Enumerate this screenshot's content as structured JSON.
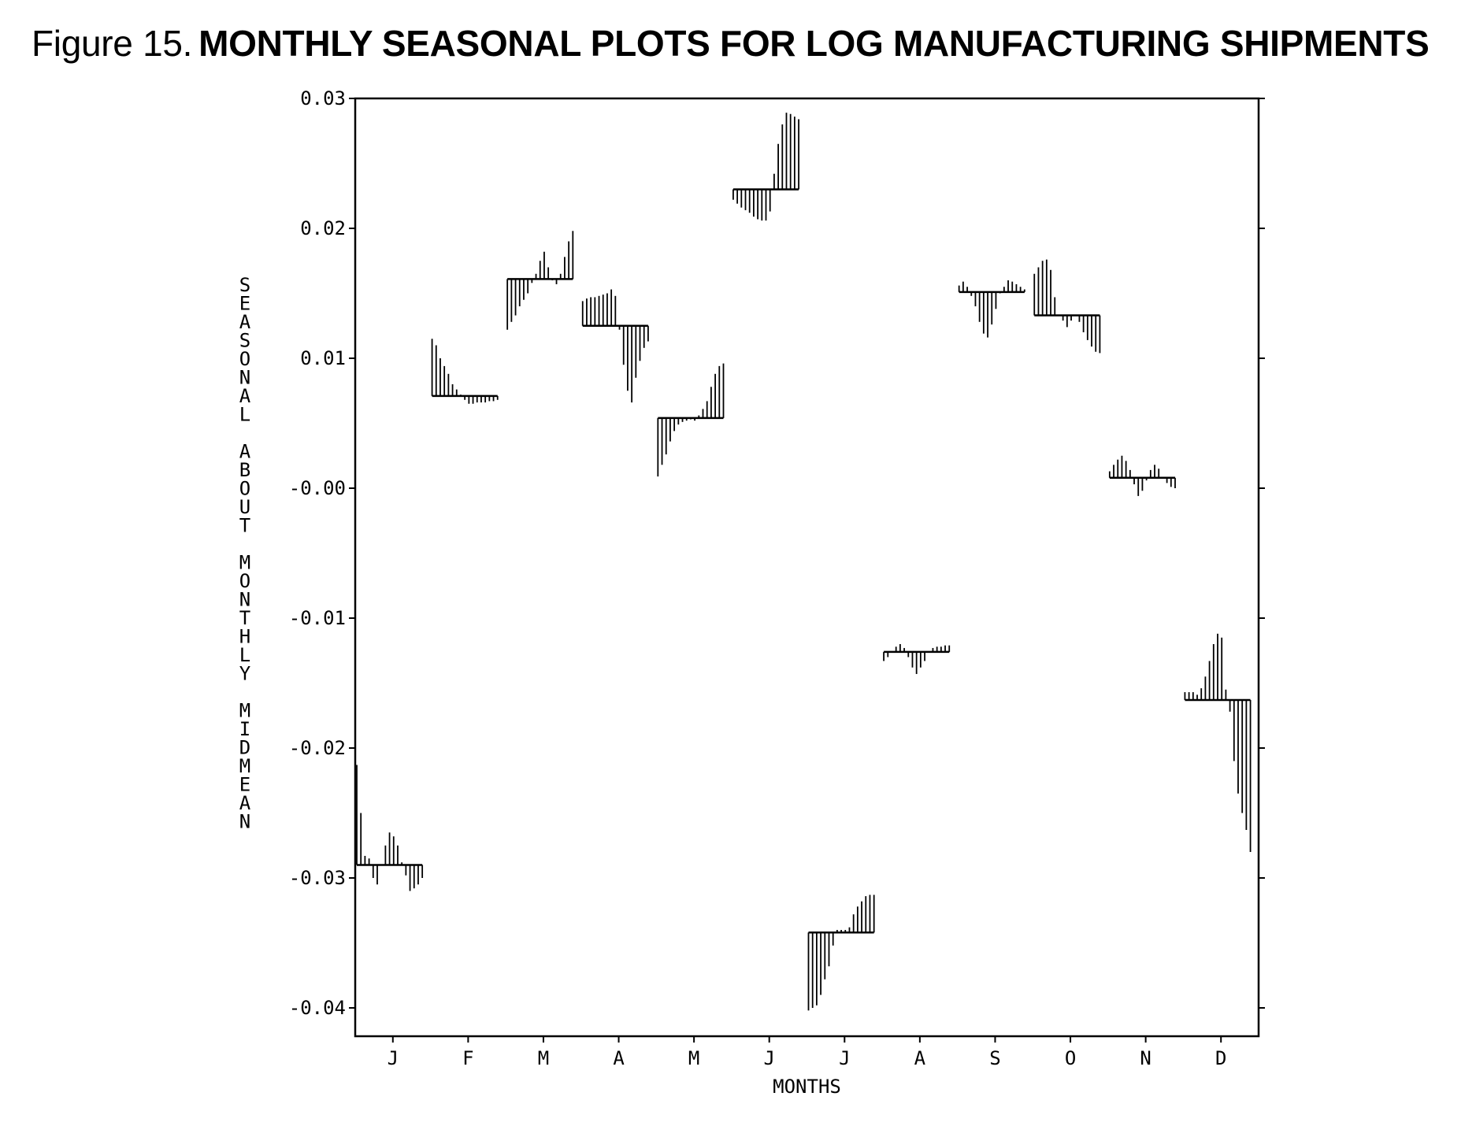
{
  "figure": {
    "label": "Figure 15.",
    "title": "MONTHLY SEASONAL PLOTS FOR LOG MANUFACTURING SHIPMENTS"
  },
  "chart_data": {
    "type": "cycle-subseries",
    "xlabel": "MONTHS",
    "ylabel": "SEASONAL ABOUT MONTHLY MIDMEAN",
    "ylim": [
      -0.0425,
      0.03
    ],
    "yticks": [
      0.03,
      0.02,
      0.01,
      0.0,
      -0.01,
      -0.02,
      -0.03,
      -0.04
    ],
    "ytick_labels": [
      "0.03",
      "0.02",
      "0.01",
      "-0.00",
      "-0.01",
      "-0.02",
      "-0.03",
      "-0.04"
    ],
    "grid": false,
    "line_color": "#000000",
    "months": [
      {
        "label": "J",
        "midmean": -0.029,
        "values": [
          -0.0213,
          -0.025,
          -0.0283,
          -0.0285,
          -0.03,
          -0.0305,
          -0.029,
          -0.0275,
          -0.0265,
          -0.0268,
          -0.0275,
          -0.0288,
          -0.0298,
          -0.031,
          -0.0308,
          -0.0305,
          -0.03
        ]
      },
      {
        "label": "F",
        "midmean": 0.0071,
        "values": [
          0.0115,
          0.011,
          0.01,
          0.0094,
          0.0088,
          0.008,
          0.0076,
          0.0072,
          0.0068,
          0.0065,
          0.0065,
          0.0066,
          0.0066,
          0.0066,
          0.0067,
          0.0067,
          0.0068
        ]
      },
      {
        "label": "M",
        "midmean": 0.0161,
        "values": [
          0.0122,
          0.0128,
          0.0133,
          0.014,
          0.0145,
          0.015,
          0.0158,
          0.0165,
          0.0175,
          0.0182,
          0.017,
          0.016,
          0.0157,
          0.0165,
          0.0178,
          0.019,
          0.0198
        ]
      },
      {
        "label": "A",
        "midmean": 0.0125,
        "values": [
          0.0144,
          0.0146,
          0.0147,
          0.0147,
          0.0148,
          0.0149,
          0.015,
          0.0153,
          0.0148,
          0.0122,
          0.0095,
          0.0075,
          0.0066,
          0.0085,
          0.0098,
          0.0108,
          0.0113
        ]
      },
      {
        "label": "M",
        "midmean": 0.0054,
        "values": [
          0.0009,
          0.0018,
          0.0026,
          0.0036,
          0.0044,
          0.0049,
          0.0051,
          0.0052,
          0.0053,
          0.0052,
          0.0056,
          0.0061,
          0.0067,
          0.0078,
          0.0088,
          0.0094,
          0.0096
        ]
      },
      {
        "label": "J",
        "midmean": 0.023,
        "values": [
          0.0222,
          0.0219,
          0.0216,
          0.0214,
          0.0212,
          0.0209,
          0.0207,
          0.0206,
          0.0206,
          0.0213,
          0.0242,
          0.0265,
          0.028,
          0.0289,
          0.0288,
          0.0286,
          0.0284
        ]
      },
      {
        "label": "J",
        "midmean": -0.0342,
        "values": [
          -0.0402,
          -0.04,
          -0.0398,
          -0.039,
          -0.0378,
          -0.0368,
          -0.0352,
          -0.034,
          -0.034,
          -0.034,
          -0.0338,
          -0.0328,
          -0.0322,
          -0.0318,
          -0.0314,
          -0.0313,
          -0.0313
        ]
      },
      {
        "label": "A",
        "midmean": -0.0126,
        "values": [
          -0.0133,
          -0.013,
          -0.0126,
          -0.0122,
          -0.012,
          -0.0123,
          -0.013,
          -0.0138,
          -0.0143,
          -0.0138,
          -0.0133,
          -0.0126,
          -0.0123,
          -0.0122,
          -0.0122,
          -0.0121,
          -0.0121
        ]
      },
      {
        "label": "S",
        "midmean": 0.0151,
        "values": [
          0.0156,
          0.0159,
          0.0155,
          0.0148,
          0.014,
          0.0128,
          0.0119,
          0.0116,
          0.0126,
          0.0138,
          0.015,
          0.0155,
          0.016,
          0.0159,
          0.0157,
          0.0155,
          0.0153
        ]
      },
      {
        "label": "O",
        "midmean": 0.0133,
        "values": [
          0.0165,
          0.017,
          0.0175,
          0.0176,
          0.0168,
          0.0147,
          0.0133,
          0.0129,
          0.0124,
          0.0129,
          0.0133,
          0.0128,
          0.012,
          0.0114,
          0.0109,
          0.0105,
          0.0104
        ]
      },
      {
        "label": "N",
        "midmean": 0.0008,
        "values": [
          0.0013,
          0.0018,
          0.0022,
          0.0025,
          0.0021,
          0.0014,
          0.0003,
          -0.0006,
          -0.0002,
          0.0006,
          0.0014,
          0.0018,
          0.0015,
          0.0008,
          0.0004,
          0.0001,
          0.0
        ]
      },
      {
        "label": "D",
        "midmean": -0.0163,
        "values": [
          -0.0157,
          -0.0157,
          -0.0157,
          -0.0159,
          -0.0154,
          -0.0145,
          -0.0133,
          -0.012,
          -0.0112,
          -0.0115,
          -0.0155,
          -0.0172,
          -0.021,
          -0.0235,
          -0.025,
          -0.0263,
          -0.028
        ]
      }
    ]
  }
}
